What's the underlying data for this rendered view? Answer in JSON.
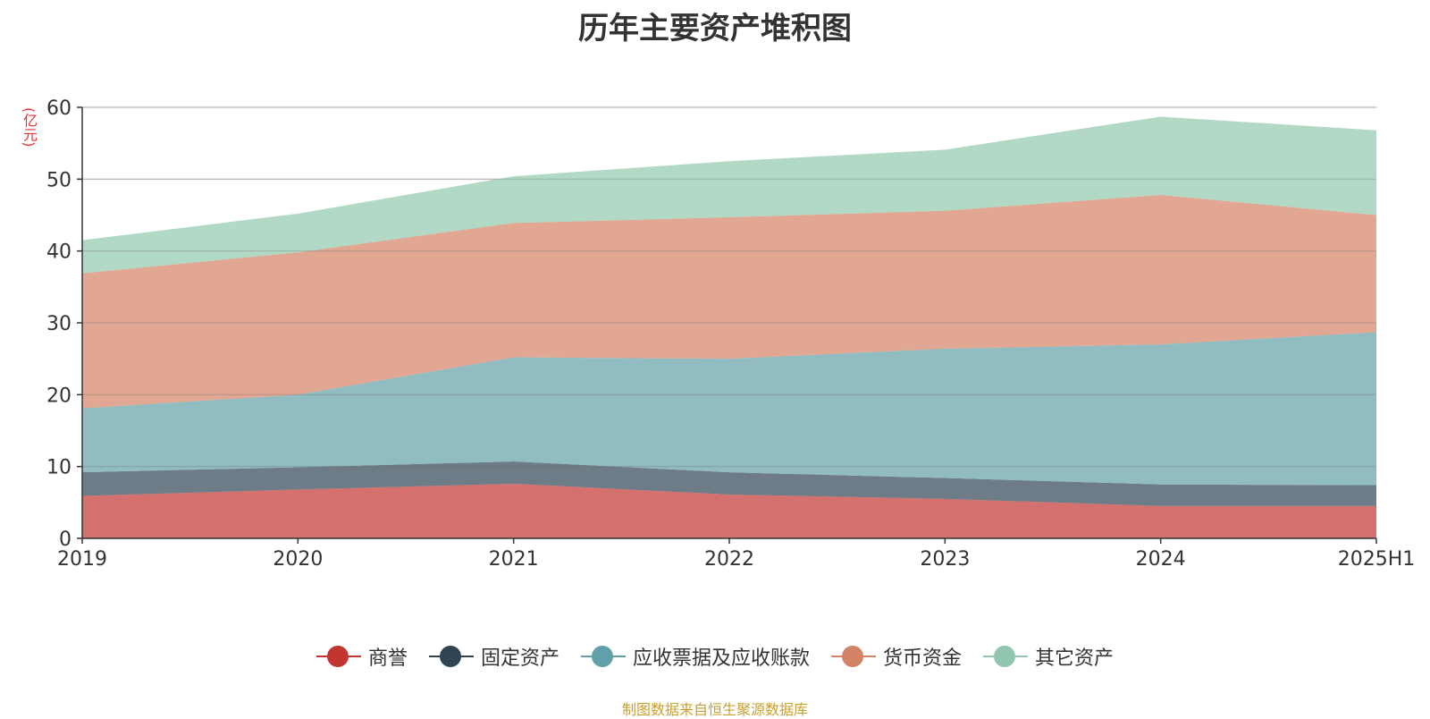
{
  "chart_data": {
    "type": "area",
    "stacked": true,
    "title": "历年主要资产堆积图",
    "unit": "(亿元)",
    "categories": [
      "2019",
      "2020",
      "2021",
      "2022",
      "2023",
      "2024",
      "2025H1"
    ],
    "ylim": [
      0,
      60
    ],
    "yticks": [
      0,
      10,
      20,
      30,
      40,
      50,
      60
    ],
    "grid": true,
    "legend_position": "bottom",
    "series": [
      {
        "name": "商誉",
        "color": "#c23531",
        "values": [
          5.9,
          6.8,
          7.6,
          6.1,
          5.5,
          4.5,
          4.5
        ]
      },
      {
        "name": "固定资产",
        "color": "#2f4554",
        "values": [
          3.3,
          3.1,
          3.1,
          3.1,
          2.9,
          3.0,
          2.9
        ]
      },
      {
        "name": "应收票据及应收账款",
        "color": "#61a0a8",
        "values": [
          8.9,
          10.1,
          14.5,
          15.8,
          18.0,
          19.5,
          21.3
        ]
      },
      {
        "name": "货币资金",
        "color": "#d48265",
        "values": [
          18.8,
          19.8,
          18.7,
          19.7,
          19.2,
          20.8,
          16.3
        ]
      },
      {
        "name": "其它资产",
        "color": "#91c7ae",
        "values": [
          4.6,
          5.4,
          6.5,
          7.8,
          8.5,
          10.9,
          11.8
        ]
      }
    ]
  },
  "source_note": "制图数据来自恒生聚源数据库"
}
